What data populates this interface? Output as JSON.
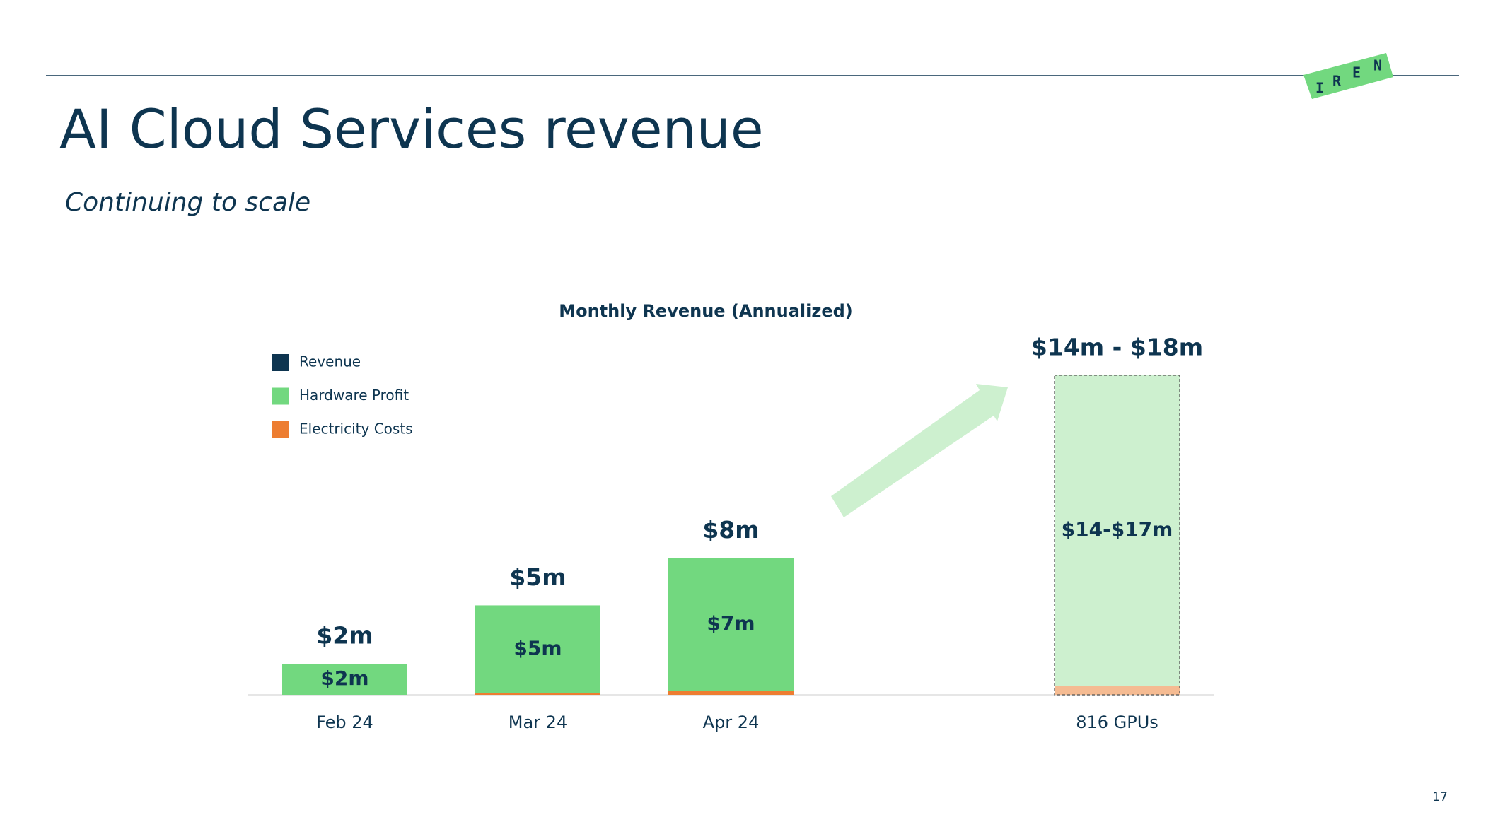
{
  "header": {
    "title": "AI Cloud Services revenue",
    "subtitle": "Continuing to scale",
    "logo": [
      "I",
      "R",
      "E",
      "N"
    ]
  },
  "page_number": "17",
  "chart_data": {
    "type": "stacked_bar",
    "title": "Monthly Revenue (Annualized)",
    "categories": [
      "Feb 24",
      "Mar 24",
      "Apr 24",
      null,
      "816 GPUs"
    ],
    "projected": [
      false,
      false,
      false,
      false,
      true
    ],
    "legend": "upper left",
    "series": [
      {
        "name": "Revenue",
        "color": "#0e3550",
        "role": "total",
        "values": [
          1.7,
          4.9,
          7.5,
          null,
          17.5
        ],
        "value_labels": [
          "$2m",
          "$5m",
          "$8m",
          null,
          "$14m - $18m"
        ]
      },
      {
        "name": "Hardware Profit",
        "color": "#72d87f",
        "projected_color": "#cdf0cf",
        "values": [
          1.7,
          4.8,
          7.3,
          null,
          17
        ],
        "value_labels": [
          "$2m",
          "$5m",
          "$7m",
          null,
          "$14-$17m"
        ]
      },
      {
        "name": "Electricity Costs",
        "color": "#ed7d31",
        "projected_color": "#f5bb92",
        "values": [
          0,
          0.1,
          0.2,
          null,
          0.5
        ]
      }
    ]
  }
}
